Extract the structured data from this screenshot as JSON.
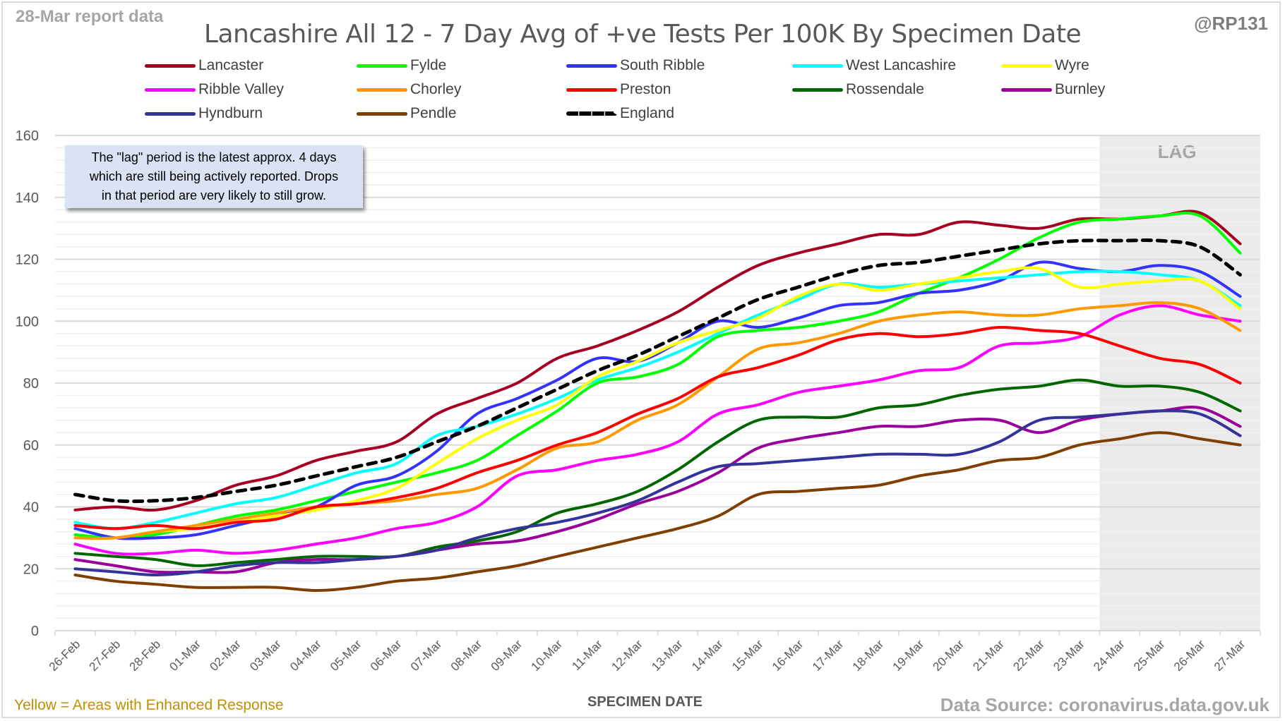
{
  "header": {
    "report_date": "28-Mar report data",
    "handle": "@RP131"
  },
  "annotation": {
    "line1": "The \"lag\" period is the latest approx. 4 days",
    "line2": "which are still being actively reported.  Drops",
    "line3": "in that period are very likely to still grow."
  },
  "footer": {
    "note": "Yellow = Areas with Enhanced Response",
    "source": "Data Source: coronavirus.data.gov.uk"
  },
  "chart_data": {
    "type": "line",
    "title": "Lancashire All 12 - 7 Day Avg of +ve Tests Per 100K By Specimen Date",
    "xlabel": "SPECIMEN DATE",
    "ylabel": "",
    "ylim": [
      0,
      160
    ],
    "yticks": [
      0,
      20,
      40,
      60,
      80,
      100,
      120,
      140,
      160
    ],
    "ytick_labels": [
      "0",
      "20",
      "40",
      "60",
      "80",
      "100",
      "120",
      "140",
      "160"
    ],
    "grid": "horizontal major and minor",
    "legend_position": "top",
    "lag_region": {
      "label": "LAG",
      "start": "24-Mar",
      "end": "27-Mar"
    },
    "categories": [
      "26-Feb",
      "27-Feb",
      "28-Feb",
      "01-Mar",
      "02-Mar",
      "03-Mar",
      "04-Mar",
      "05-Mar",
      "06-Mar",
      "07-Mar",
      "08-Mar",
      "09-Mar",
      "10-Mar",
      "11-Mar",
      "12-Mar",
      "13-Mar",
      "14-Mar",
      "15-Mar",
      "16-Mar",
      "17-Mar",
      "18-Mar",
      "19-Mar",
      "20-Mar",
      "21-Mar",
      "22-Mar",
      "23-Mar",
      "24-Mar",
      "25-Mar",
      "26-Mar",
      "27-Mar"
    ],
    "series": [
      {
        "name": "Lancaster",
        "color": "#a50021",
        "dashed": false,
        "values": [
          39,
          40,
          39,
          42,
          47,
          50,
          55,
          58,
          61,
          70,
          75,
          80,
          88,
          92,
          97,
          103,
          111,
          118,
          122,
          125,
          128,
          128,
          132,
          131,
          130,
          133,
          133,
          134,
          135,
          125
        ]
      },
      {
        "name": "Fylde",
        "color": "#00ff00",
        "dashed": false,
        "values": [
          31,
          30,
          31,
          34,
          37,
          39,
          42,
          45,
          48,
          51,
          55,
          63,
          71,
          80,
          82,
          86,
          95,
          97,
          98,
          100,
          103,
          109,
          114,
          120,
          127,
          132,
          133,
          134,
          134,
          122
        ]
      },
      {
        "name": "South Ribble",
        "color": "#3333ff",
        "dashed": false,
        "values": [
          33,
          30,
          30,
          31,
          34,
          37,
          40,
          47,
          50,
          58,
          70,
          75,
          81,
          88,
          87,
          93,
          100,
          98,
          101,
          105,
          106,
          109,
          110,
          113,
          119,
          117,
          116,
          118,
          116,
          108
        ]
      },
      {
        "name": "West Lancashire",
        "color": "#00ffff",
        "dashed": false,
        "values": [
          35,
          33,
          35,
          38,
          41,
          43,
          47,
          51,
          54,
          63,
          66,
          70,
          75,
          81,
          85,
          90,
          96,
          102,
          107,
          112,
          111,
          112,
          113,
          114,
          115,
          116,
          116,
          115,
          113,
          105
        ]
      },
      {
        "name": "Wyre",
        "color": "#ffff00",
        "dashed": false,
        "values": [
          30,
          30,
          32,
          33,
          35,
          37,
          39,
          42,
          46,
          54,
          62,
          68,
          73,
          82,
          87,
          93,
          97,
          101,
          108,
          112,
          110,
          112,
          114,
          116,
          117,
          111,
          112,
          113,
          113,
          104
        ]
      },
      {
        "name": "Ribble Valley",
        "color": "#ff00ff",
        "dashed": false,
        "values": [
          28,
          25,
          25,
          26,
          25,
          26,
          28,
          30,
          33,
          35,
          40,
          50,
          52,
          55,
          57,
          61,
          70,
          73,
          77,
          79,
          81,
          84,
          85,
          92,
          93,
          95,
          102,
          105,
          102,
          100
        ]
      },
      {
        "name": "Chorley",
        "color": "#ff9900",
        "dashed": false,
        "values": [
          30,
          30,
          32,
          34,
          36,
          38,
          40,
          41,
          42,
          44,
          46,
          52,
          59,
          61,
          68,
          73,
          82,
          91,
          93,
          96,
          100,
          102,
          103,
          102,
          102,
          104,
          105,
          106,
          104,
          97
        ]
      },
      {
        "name": "Preston",
        "color": "#ff0000",
        "dashed": false,
        "values": [
          34,
          33,
          34,
          33,
          35,
          36,
          40,
          41,
          43,
          46,
          51,
          55,
          60,
          64,
          70,
          75,
          82,
          85,
          89,
          94,
          96,
          95,
          96,
          98,
          97,
          96,
          92,
          88,
          86,
          80
        ]
      },
      {
        "name": "Rossendale",
        "color": "#006600",
        "dashed": false,
        "values": [
          25,
          24,
          23,
          21,
          22,
          23,
          24,
          24,
          24,
          27,
          29,
          32,
          38,
          41,
          45,
          52,
          61,
          68,
          69,
          69,
          72,
          73,
          76,
          78,
          79,
          81,
          79,
          79,
          77,
          71
        ]
      },
      {
        "name": "Burnley",
        "color": "#990099",
        "dashed": false,
        "values": [
          23,
          21,
          19,
          19,
          19,
          22,
          23,
          23,
          24,
          26,
          28,
          29,
          32,
          36,
          41,
          45,
          51,
          59,
          62,
          64,
          66,
          66,
          68,
          68,
          64,
          68,
          70,
          71,
          72,
          66
        ]
      },
      {
        "name": "Hyndburn",
        "color": "#333399",
        "dashed": false,
        "values": [
          20,
          19,
          18,
          19,
          21,
          22,
          22,
          23,
          24,
          26,
          30,
          33,
          35,
          38,
          42,
          48,
          53,
          54,
          55,
          56,
          57,
          57,
          57,
          61,
          68,
          69,
          70,
          71,
          70,
          63
        ]
      },
      {
        "name": "Pendle",
        "color": "#7f3f00",
        "dashed": false,
        "values": [
          18,
          16,
          15,
          14,
          14,
          14,
          13,
          14,
          16,
          17,
          19,
          21,
          24,
          27,
          30,
          33,
          37,
          44,
          45,
          46,
          47,
          50,
          52,
          55,
          56,
          60,
          62,
          64,
          62,
          60
        ]
      },
      {
        "name": "England",
        "color": "#000000",
        "dashed": true,
        "values": [
          44,
          42,
          42,
          43,
          45,
          47,
          50,
          53,
          56,
          61,
          66,
          72,
          78,
          84,
          89,
          95,
          101,
          107,
          111,
          115,
          118,
          119,
          121,
          123,
          125,
          126,
          126,
          126,
          124,
          115
        ]
      }
    ]
  }
}
